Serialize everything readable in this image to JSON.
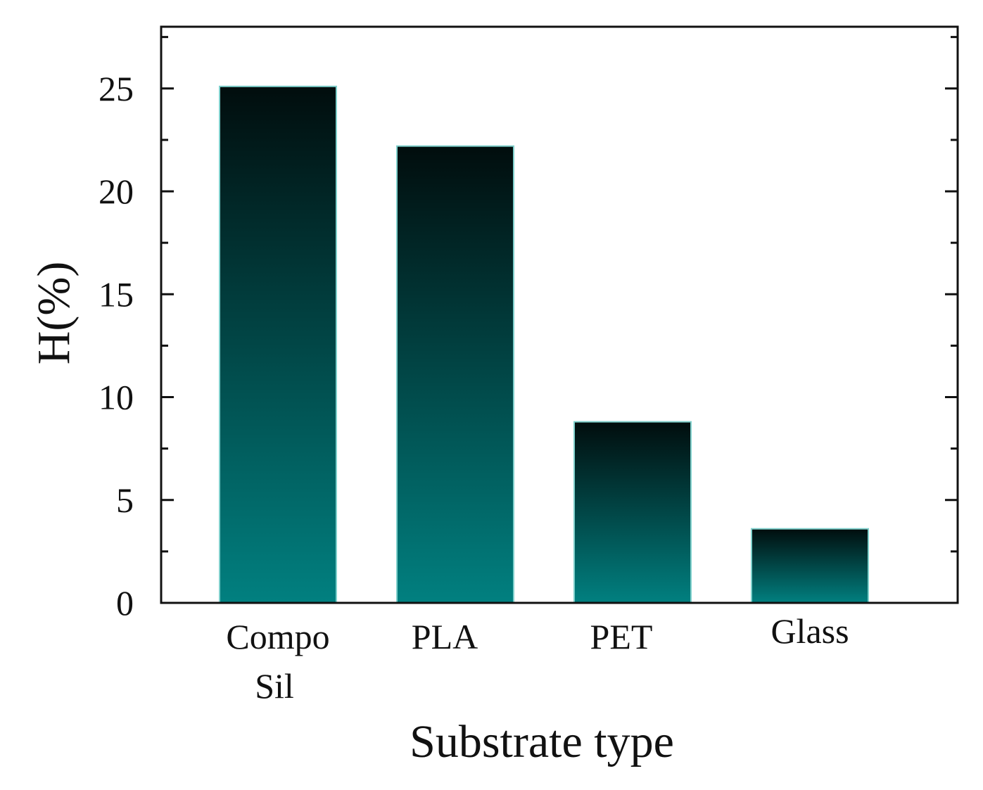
{
  "chart_data": {
    "type": "bar",
    "title": "",
    "categories": [
      "Compo Sil",
      "PLA",
      "PET",
      "Glass"
    ],
    "category_label_lines": [
      [
        "Compo",
        "Sil"
      ],
      [
        "PLA"
      ],
      [
        "PET"
      ],
      [
        "Glass"
      ]
    ],
    "values": [
      25.1,
      22.2,
      8.8,
      3.6
    ],
    "xlabel": "Substrate type",
    "ylabel": "H(%)",
    "ylim": [
      0,
      28
    ],
    "yticks": [
      0,
      5,
      10,
      15,
      20,
      25
    ],
    "yticks_minor": [
      2.5,
      7.5,
      12.5,
      17.5,
      22.5,
      27.5
    ],
    "grid": false,
    "colors": {
      "bar_top": "#010d0d",
      "bar_bottom": "#018080",
      "bar_edge": "#7fd0cc",
      "axis": "#111111"
    }
  }
}
